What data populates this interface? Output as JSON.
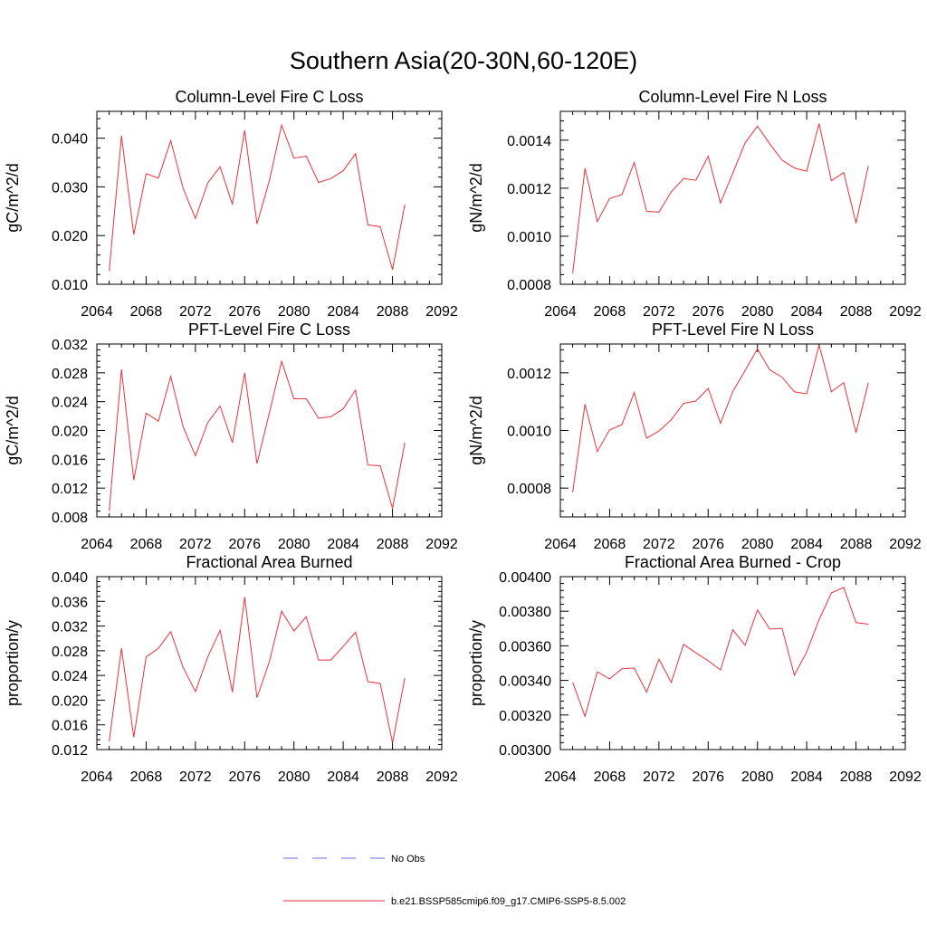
{
  "figure": {
    "title": "Southern Asia(20-30N,60-120E)",
    "legend": [
      {
        "label": "No Obs",
        "color": "#6b6bd6",
        "style": "dashed"
      },
      {
        "label": "b.e21.BSSP585cmip6.f09_g17.CMIP6-SSP5-8.5.002",
        "color": "#e8323c",
        "style": "solid"
      }
    ]
  },
  "chart_data": [
    {
      "type": "line",
      "title": "Column-Level Fire C Loss",
      "ylabel": "gC/m^2/d",
      "xlim": [
        2064,
        2092
      ],
      "ylim": [
        0.01,
        0.0455
      ],
      "xticks": [
        2064,
        2068,
        2072,
        2076,
        2080,
        2084,
        2088,
        2092
      ],
      "xtick_labels": [
        "2064",
        "2068",
        "2072",
        "2076",
        "2080",
        "2084",
        "2088",
        "2092"
      ],
      "yticks": [
        0.01,
        0.02,
        0.03,
        0.04
      ],
      "ytick_labels": [
        "0.010",
        "0.020",
        "0.030",
        "0.040"
      ],
      "x": [
        2065,
        2066,
        2067,
        2068,
        2069,
        2070,
        2071,
        2072,
        2073,
        2074,
        2075,
        2076,
        2077,
        2078,
        2079,
        2080,
        2081,
        2082,
        2083,
        2084,
        2085,
        2086,
        2087,
        2088,
        2089
      ],
      "series": [
        {
          "name": "b.e21.BSSP585cmip6.f09_g17.CMIP6-SSP5-8.5.002",
          "color": "#e8323c",
          "values": [
            0.0127,
            0.0405,
            0.0202,
            0.0327,
            0.0318,
            0.0395,
            0.0297,
            0.0235,
            0.0308,
            0.0341,
            0.0264,
            0.0416,
            0.0224,
            0.0312,
            0.0427,
            0.0359,
            0.0363,
            0.0309,
            0.0317,
            0.0333,
            0.0368,
            0.0222,
            0.0218,
            0.013,
            0.0264
          ]
        }
      ]
    },
    {
      "type": "line",
      "title": "Column-Level Fire N Loss",
      "ylabel": "gN/m^2/d",
      "xlim": [
        2064,
        2092
      ],
      "ylim": [
        0.0008,
        0.00152
      ],
      "xticks": [
        2064,
        2068,
        2072,
        2076,
        2080,
        2084,
        2088,
        2092
      ],
      "xtick_labels": [
        "2064",
        "2068",
        "2072",
        "2076",
        "2080",
        "2084",
        "2088",
        "2092"
      ],
      "yticks": [
        0.0008,
        0.001,
        0.0012,
        0.0014
      ],
      "ytick_labels": [
        "0.0008",
        "0.0010",
        "0.0012",
        "0.0014"
      ],
      "x": [
        2065,
        2066,
        2067,
        2068,
        2069,
        2070,
        2071,
        2072,
        2073,
        2074,
        2075,
        2076,
        2077,
        2078,
        2079,
        2080,
        2081,
        2082,
        2083,
        2084,
        2085,
        2086,
        2087,
        2088,
        2089
      ],
      "series": [
        {
          "name": "b.e21.BSSP585cmip6.f09_g17.CMIP6-SSP5-8.5.002",
          "color": "#e8323c",
          "values": [
            0.000845,
            0.001283,
            0.001061,
            0.001157,
            0.001173,
            0.001307,
            0.001104,
            0.0011,
            0.001185,
            0.00124,
            0.001233,
            0.001333,
            0.001138,
            0.001263,
            0.001389,
            0.001458,
            0.001385,
            0.001317,
            0.001284,
            0.001271,
            0.001469,
            0.001231,
            0.001265,
            0.001054,
            0.001293
          ]
        }
      ]
    },
    {
      "type": "line",
      "title": "PFT-Level Fire C Loss",
      "ylabel": "gC/m^2/d",
      "xlim": [
        2064,
        2092
      ],
      "ylim": [
        0.008,
        0.032
      ],
      "xticks": [
        2064,
        2068,
        2072,
        2076,
        2080,
        2084,
        2088,
        2092
      ],
      "xtick_labels": [
        "2064",
        "2068",
        "2072",
        "2076",
        "2080",
        "2084",
        "2088",
        "2092"
      ],
      "yticks": [
        0.008,
        0.012,
        0.016,
        0.02,
        0.024,
        0.028,
        0.032
      ],
      "ytick_labels": [
        "0.008",
        "0.012",
        "0.016",
        "0.020",
        "0.024",
        "0.028",
        "0.032"
      ],
      "x": [
        2065,
        2066,
        2067,
        2068,
        2069,
        2070,
        2071,
        2072,
        2073,
        2074,
        2075,
        2076,
        2077,
        2078,
        2079,
        2080,
        2081,
        2082,
        2083,
        2084,
        2085,
        2086,
        2087,
        2088,
        2089
      ],
      "series": [
        {
          "name": "b.e21.BSSP585cmip6.f09_g17.CMIP6-SSP5-8.5.002",
          "color": "#e8323c",
          "values": [
            0.0088,
            0.0285,
            0.0131,
            0.0224,
            0.0213,
            0.0275,
            0.0205,
            0.0165,
            0.0211,
            0.0234,
            0.0183,
            0.028,
            0.0154,
            0.0224,
            0.0296,
            0.0244,
            0.0244,
            0.0217,
            0.0219,
            0.023,
            0.0256,
            0.0152,
            0.0151,
            0.0092,
            0.0183
          ]
        }
      ]
    },
    {
      "type": "line",
      "title": "PFT-Level Fire N Loss",
      "ylabel": "gN/m^2/d",
      "xlim": [
        2064,
        2092
      ],
      "ylim": [
        0.0007,
        0.0013
      ],
      "xticks": [
        2064,
        2068,
        2072,
        2076,
        2080,
        2084,
        2088,
        2092
      ],
      "xtick_labels": [
        "2064",
        "2068",
        "2072",
        "2076",
        "2080",
        "2084",
        "2088",
        "2092"
      ],
      "yticks": [
        0.0008,
        0.001,
        0.0012
      ],
      "ytick_labels": [
        "0.0008",
        "0.0010",
        "0.0012"
      ],
      "x": [
        2065,
        2066,
        2067,
        2068,
        2069,
        2070,
        2071,
        2072,
        2073,
        2074,
        2075,
        2076,
        2077,
        2078,
        2079,
        2080,
        2081,
        2082,
        2083,
        2084,
        2085,
        2086,
        2087,
        2088,
        2089
      ],
      "series": [
        {
          "name": "b.e21.BSSP585cmip6.f09_g17.CMIP6-SSP5-8.5.002",
          "color": "#e8323c",
          "values": [
            0.000785,
            0.001091,
            0.000927,
            0.001002,
            0.00102,
            0.001132,
            0.000973,
            0.000998,
            0.001037,
            0.001094,
            0.001102,
            0.001146,
            0.001025,
            0.001135,
            0.001208,
            0.001283,
            0.00121,
            0.001185,
            0.001134,
            0.001127,
            0.001297,
            0.001134,
            0.001166,
            0.000992,
            0.001166
          ]
        }
      ]
    },
    {
      "type": "line",
      "title": "Fractional Area Burned",
      "ylabel": "proportion/y",
      "xlim": [
        2064,
        2092
      ],
      "ylim": [
        0.012,
        0.04
      ],
      "xticks": [
        2064,
        2068,
        2072,
        2076,
        2080,
        2084,
        2088,
        2092
      ],
      "xtick_labels": [
        "2064",
        "2068",
        "2072",
        "2076",
        "2080",
        "2084",
        "2088",
        "2092"
      ],
      "yticks": [
        0.012,
        0.016,
        0.02,
        0.024,
        0.028,
        0.032,
        0.036,
        0.04
      ],
      "ytick_labels": [
        "0.012",
        "0.016",
        "0.020",
        "0.024",
        "0.028",
        "0.032",
        "0.036",
        "0.040"
      ],
      "x": [
        2065,
        2066,
        2067,
        2068,
        2069,
        2070,
        2071,
        2072,
        2073,
        2074,
        2075,
        2076,
        2077,
        2078,
        2079,
        2080,
        2081,
        2082,
        2083,
        2084,
        2085,
        2086,
        2087,
        2088,
        2089
      ],
      "series": [
        {
          "name": "b.e21.BSSP585cmip6.f09_g17.CMIP6-SSP5-8.5.002",
          "color": "#e8323c",
          "values": [
            0.0133,
            0.0284,
            0.014,
            0.027,
            0.0284,
            0.0311,
            0.0253,
            0.0214,
            0.027,
            0.0313,
            0.0213,
            0.0367,
            0.0204,
            0.0262,
            0.0344,
            0.0312,
            0.0335,
            0.0265,
            0.0265,
            0.0287,
            0.031,
            0.023,
            0.0227,
            0.0131,
            0.0236
          ]
        }
      ]
    },
    {
      "type": "line",
      "title": "Fractional Area Burned - Crop",
      "ylabel": "proportion/y",
      "xlim": [
        2064,
        2092
      ],
      "ylim": [
        0.003,
        0.004
      ],
      "xticks": [
        2064,
        2068,
        2072,
        2076,
        2080,
        2084,
        2088,
        2092
      ],
      "xtick_labels": [
        "2064",
        "2068",
        "2072",
        "2076",
        "2080",
        "2084",
        "2088",
        "2092"
      ],
      "yticks": [
        0.003,
        0.0032,
        0.0034,
        0.0036,
        0.0038,
        0.004
      ],
      "ytick_labels": [
        "0.00300",
        "0.00320",
        "0.00340",
        "0.00360",
        "0.00380",
        "0.00400"
      ],
      "x": [
        2065,
        2066,
        2067,
        2068,
        2069,
        2070,
        2071,
        2072,
        2073,
        2074,
        2075,
        2076,
        2077,
        2078,
        2079,
        2080,
        2081,
        2082,
        2083,
        2084,
        2085,
        2086,
        2087,
        2088,
        2089
      ],
      "series": [
        {
          "name": "b.e21.BSSP585cmip6.f09_g17.CMIP6-SSP5-8.5.002",
          "color": "#e8323c",
          "values": [
            0.003389,
            0.003192,
            0.00345,
            0.003409,
            0.003467,
            0.003471,
            0.003332,
            0.003523,
            0.003388,
            0.003609,
            0.003559,
            0.003514,
            0.00346,
            0.003693,
            0.003603,
            0.003808,
            0.003697,
            0.0037,
            0.00343,
            0.003565,
            0.003752,
            0.003906,
            0.003938,
            0.003734,
            0.003725
          ]
        }
      ]
    }
  ]
}
